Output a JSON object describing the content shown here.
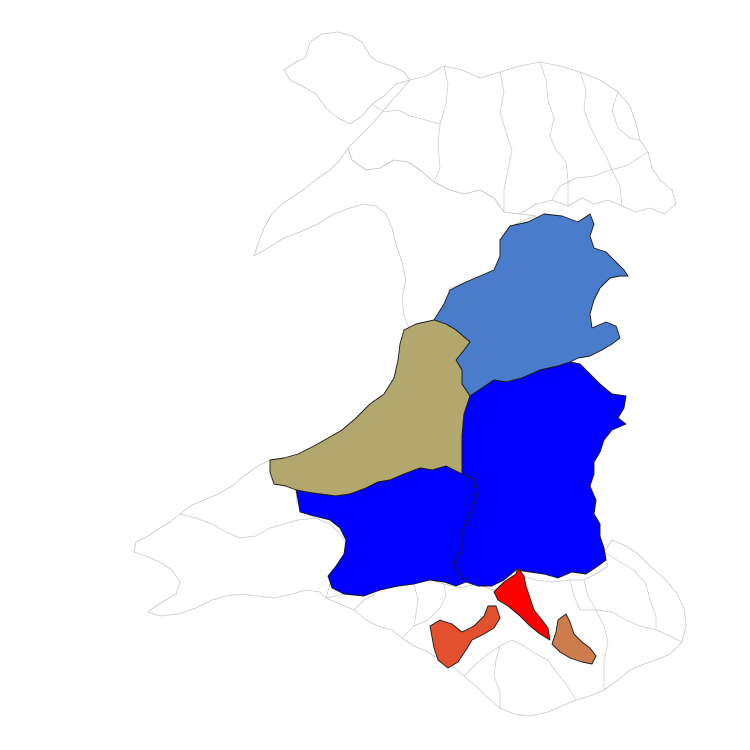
{
  "map": {
    "type": "choropleth",
    "background_color": "#ffffff",
    "outline_color": "#c8c8c8",
    "highlighted_regions": [
      {
        "id": "region-north-powys",
        "fill": "#497dcc"
      },
      {
        "id": "region-ceredigion",
        "fill": "#b2a86d"
      },
      {
        "id": "region-south-powys",
        "fill": "#0000ff"
      },
      {
        "id": "region-carmarthenshire",
        "fill": "#0000ff"
      },
      {
        "id": "region-merthyr-rhondda",
        "fill": "#ff0000"
      },
      {
        "id": "region-bridgend-rct",
        "fill": "#e2502e"
      },
      {
        "id": "region-caerphilly",
        "fill": "#cd7d4b"
      }
    ]
  }
}
